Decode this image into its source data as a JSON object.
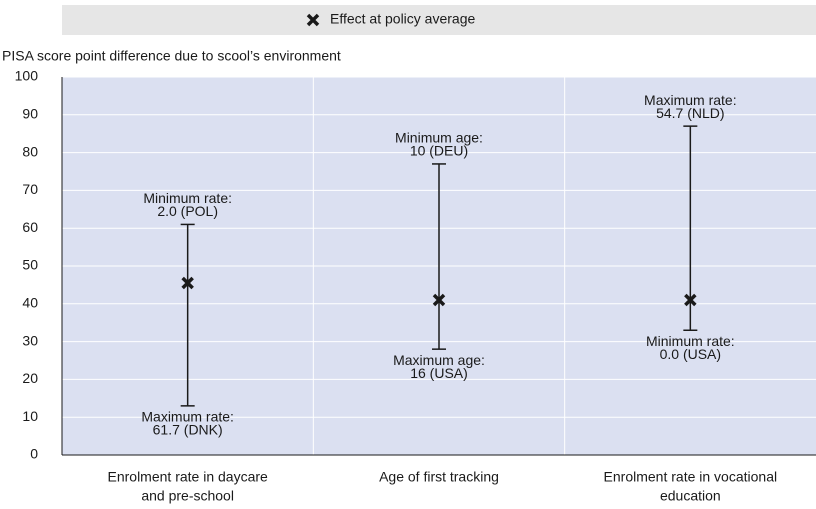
{
  "chart_data": {
    "type": "range",
    "ylabel": "PISA score point difference due to scool’s environment",
    "categories": [
      [
        "Enrolment rate in daycare",
        "and pre-school"
      ],
      [
        "Age of first tracking"
      ],
      [
        "Enrolment rate in vocational",
        "education"
      ]
    ],
    "series": [
      {
        "name": "Effect at policy average",
        "color": "#1a1a1a",
        "values": [
          45.5,
          41,
          41
        ]
      }
    ],
    "low": [
      13,
      28,
      33
    ],
    "high": [
      61,
      77,
      87
    ],
    "top_labels": [
      [
        "Minimum rate:",
        "2.0 (POL)"
      ],
      [
        "Minimum age:",
        "10 (DEU)"
      ],
      [
        "Maximum rate:",
        "54.7 (NLD)"
      ]
    ],
    "bottom_labels": [
      [
        "Maximum rate:",
        "61.7 (DNK)"
      ],
      [
        "Maximum age:",
        "16 (USA)"
      ],
      [
        "Minimum rate:",
        "0.0 (USA)"
      ]
    ],
    "ylim": [
      0,
      100
    ],
    "yticks": [
      0,
      10,
      20,
      30,
      40,
      50,
      60,
      70,
      80,
      90,
      100
    ],
    "grid": true,
    "legend": "top"
  }
}
